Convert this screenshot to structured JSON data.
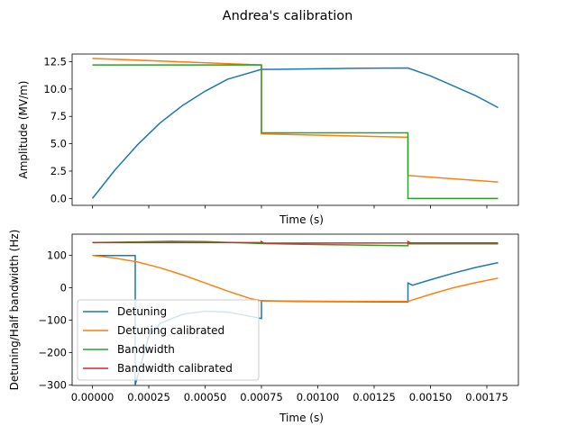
{
  "figure": {
    "title": "Andrea's calibration"
  },
  "chart_data": [
    {
      "type": "line",
      "xlabel": "Time (s)",
      "ylabel": "Amplitude (MV/m)",
      "xlim": [
        -9e-05,
        0.00189
      ],
      "ylim": [
        -0.63,
        13.2
      ],
      "yticks": [
        0.0,
        2.5,
        5.0,
        7.5,
        10.0,
        12.5
      ],
      "ytick_labels": [
        "0.0",
        "2.5",
        "5.0",
        "7.5",
        "10.0",
        "12.5"
      ],
      "xticks": [
        0,
        0.00025,
        0.0005,
        0.00075,
        0.001,
        0.00125,
        0.0015,
        0.00175
      ],
      "show_xtick_labels": false,
      "grid": false,
      "series": [
        {
          "color": "#1f77b4",
          "points": [
            [
              0,
              0
            ],
            [
              0.0001,
              2.6
            ],
            [
              0.0002,
              4.9
            ],
            [
              0.0003,
              6.9
            ],
            [
              0.0004,
              8.5
            ],
            [
              0.0005,
              9.8
            ],
            [
              0.0006,
              10.9
            ],
            [
              0.00075,
              11.8
            ],
            [
              0.0008,
              11.8
            ],
            [
              0.001,
              11.85
            ],
            [
              0.0012,
              11.9
            ],
            [
              0.0014,
              11.92
            ],
            [
              0.0015,
              11.2
            ],
            [
              0.0016,
              10.3
            ],
            [
              0.0017,
              9.4
            ],
            [
              0.0018,
              8.3
            ]
          ]
        },
        {
          "color": "#ff7f0e",
          "points": [
            [
              0,
              12.8
            ],
            [
              0.00075,
              12.2
            ],
            [
              0.00075,
              5.9
            ],
            [
              0.0014,
              5.6
            ],
            [
              0.0014,
              2.1
            ],
            [
              0.0018,
              1.5
            ]
          ]
        },
        {
          "color": "#2ca02c",
          "points": [
            [
              0,
              12.2
            ],
            [
              0.00075,
              12.2
            ],
            [
              0.00075,
              6.0
            ],
            [
              0.0014,
              6.0
            ],
            [
              0.0014,
              0.0
            ],
            [
              0.0018,
              0.0
            ]
          ]
        }
      ]
    },
    {
      "type": "line",
      "xlabel": "Time (s)",
      "ylabel": "Detuning/Half bandwidth (Hz)",
      "xlim": [
        -9e-05,
        0.00189
      ],
      "ylim": [
        -302,
        166
      ],
      "yticks": [
        -300,
        -200,
        -100,
        0,
        100
      ],
      "ytick_labels": [
        "−300",
        "−200",
        "−100",
        "0",
        "100"
      ],
      "xticks": [
        0,
        0.00025,
        0.0005,
        0.00075,
        0.001,
        0.00125,
        0.0015,
        0.00175
      ],
      "xtick_labels": [
        "0.00000",
        "0.00025",
        "0.00050",
        "0.00075",
        "0.00100",
        "0.00125",
        "0.00150",
        "0.00175"
      ],
      "show_xtick_labels": true,
      "grid": false,
      "legend": {
        "location": "lower-left",
        "entries": [
          "Detuning",
          "Detuning calibrated",
          "Bandwidth",
          "Bandwidth calibrated"
        ]
      },
      "series": [
        {
          "name": "Detuning",
          "color": "#1f77b4",
          "points": [
            [
              0,
              100
            ],
            [
              0.00019,
              100
            ],
            [
              0.00019,
              -300
            ],
            [
              0.00025,
              -150
            ],
            [
              0.0003,
              -110
            ],
            [
              0.0004,
              -82
            ],
            [
              0.0005,
              -72
            ],
            [
              0.0006,
              -75
            ],
            [
              0.0007,
              -88
            ],
            [
              0.00075,
              -95
            ],
            [
              0.00075,
              -40
            ],
            [
              0.0009,
              -42
            ],
            [
              0.0011,
              -43
            ],
            [
              0.0014,
              -44
            ],
            [
              0.0014,
              15
            ],
            [
              0.00142,
              8
            ],
            [
              0.0015,
              25
            ],
            [
              0.0016,
              45
            ],
            [
              0.0017,
              63
            ],
            [
              0.0018,
              78
            ]
          ]
        },
        {
          "name": "Detuning calibrated",
          "color": "#ff7f0e",
          "points": [
            [
              0,
              100
            ],
            [
              0.0001,
              92
            ],
            [
              0.0002,
              80
            ],
            [
              0.0003,
              62
            ],
            [
              0.0004,
              40
            ],
            [
              0.0005,
              15
            ],
            [
              0.0006,
              -10
            ],
            [
              0.0007,
              -33
            ],
            [
              0.00075,
              -40
            ],
            [
              0.0009,
              -41
            ],
            [
              0.0011,
              -42
            ],
            [
              0.0014,
              -42
            ],
            [
              0.0015,
              -20
            ],
            [
              0.0016,
              0
            ],
            [
              0.0017,
              16
            ],
            [
              0.0018,
              30
            ]
          ]
        },
        {
          "name": "Bandwidth",
          "color": "#2ca02c",
          "points": [
            [
              0,
              140
            ],
            [
              0.0002,
              142
            ],
            [
              0.00035,
              144
            ],
            [
              0.0005,
              143
            ],
            [
              0.00075,
              137
            ],
            [
              0.0009,
              135
            ],
            [
              0.0011,
              133
            ],
            [
              0.0014,
              130
            ],
            [
              0.0014,
              136
            ],
            [
              0.0018,
              136
            ]
          ]
        },
        {
          "name": "Bandwidth calibrated",
          "color": "#d62728",
          "points": [
            [
              0,
              140
            ],
            [
              0.00075,
              140
            ],
            [
              0.00075,
              143
            ],
            [
              0.00076,
              138
            ],
            [
              0.0014,
              139
            ],
            [
              0.0014,
              143
            ],
            [
              0.00141,
              139
            ],
            [
              0.0018,
              139
            ]
          ]
        }
      ]
    }
  ]
}
